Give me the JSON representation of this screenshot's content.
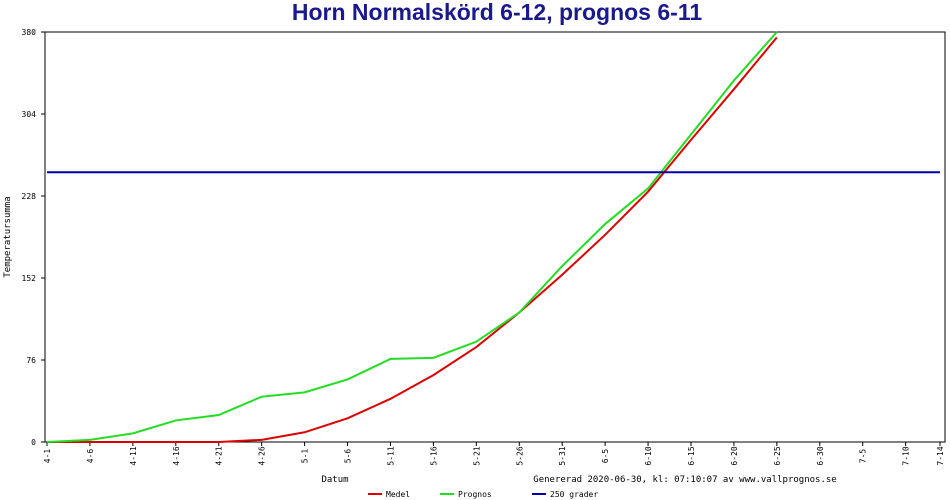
{
  "chart_data": {
    "type": "line",
    "title": "Horn Normalskörd 6-12, prognos 6-11",
    "x_label": "Datum",
    "y_label": "Temperatursumma",
    "annotation": "Genererad 2020-06-30, kl: 07:10:07 av www.vallprognos.se",
    "categories": [
      "4-1",
      "4-6",
      "4-11",
      "4-16",
      "4-21",
      "4-26",
      "5-1",
      "5-6",
      "5-11",
      "5-16",
      "5-21",
      "5-26",
      "5-31",
      "6-5",
      "6-10",
      "6-15",
      "6-20",
      "6-25",
      "6-30",
      "7-5",
      "7-10",
      "7-14"
    ],
    "series": [
      {
        "name": "Medel",
        "color": "#dd0000",
        "values": [
          0,
          0,
          0,
          0,
          0,
          2,
          9,
          22,
          40,
          62,
          88,
          120,
          155,
          192,
          232,
          280,
          327,
          375,
          null,
          null,
          null,
          null
        ]
      },
      {
        "name": "Prognos",
        "color": "#22dd22",
        "values": [
          0,
          2,
          8,
          20,
          25,
          42,
          46,
          58,
          77,
          78,
          93,
          120,
          163,
          202,
          235,
          285,
          335,
          380,
          null,
          null,
          null,
          null
        ]
      },
      {
        "name": "250 grader",
        "color": "#0000aa",
        "values": [
          250,
          250,
          250,
          250,
          250,
          250,
          250,
          250,
          250,
          250,
          250,
          250,
          250,
          250,
          250,
          250,
          250,
          250,
          250,
          250,
          250,
          250
        ]
      }
    ],
    "ylim": [
      0,
      380
    ],
    "yticks": [
      0,
      76,
      152,
      228,
      304,
      380
    ]
  }
}
